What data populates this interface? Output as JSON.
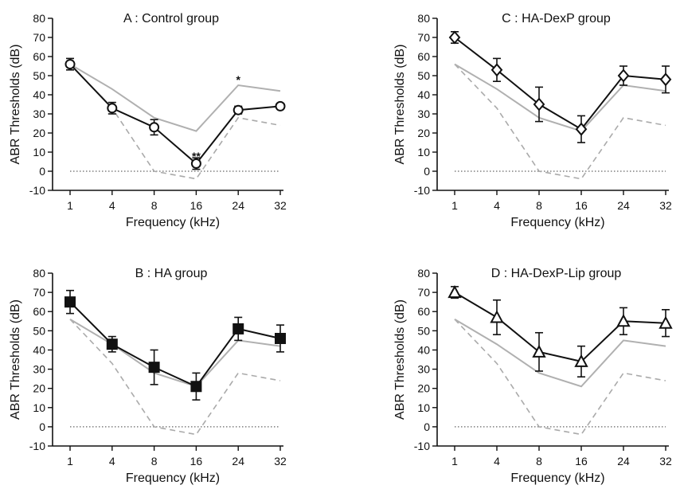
{
  "chart_data": [
    {
      "type": "line",
      "title": "A : Control group",
      "xlabel": "Frequency (kHz)",
      "ylabel": "ABR Thresholds (dB)",
      "categories": [
        "1",
        "4",
        "8",
        "16",
        "24",
        "32"
      ],
      "ylim": [
        -10,
        80
      ],
      "yticks": [
        -10,
        0,
        10,
        20,
        30,
        40,
        50,
        60,
        70,
        80
      ],
      "marker": "circle-open",
      "series": [
        {
          "values": [
            56,
            33,
            23,
            4,
            32,
            34
          ],
          "errors": [
            3,
            3,
            4,
            3,
            2,
            1
          ]
        },
        {
          "values": [
            56,
            43,
            28,
            21,
            45,
            42
          ]
        },
        {
          "values": [
            56,
            33,
            0,
            -4,
            28,
            24
          ]
        },
        {
          "values": [
            0,
            0,
            0,
            0,
            0,
            0
          ]
        }
      ],
      "annotations": [
        {
          "text": "**",
          "x": "16",
          "y": 8
        },
        {
          "text": "*",
          "x": "24",
          "y": 48
        }
      ]
    },
    {
      "type": "line",
      "title": "B : HA group",
      "xlabel": "Frequency (kHz)",
      "ylabel": "ABR Thresholds (dB)",
      "categories": [
        "1",
        "4",
        "8",
        "16",
        "24",
        "32"
      ],
      "ylim": [
        -10,
        80
      ],
      "yticks": [
        -10,
        0,
        10,
        20,
        30,
        40,
        50,
        60,
        70,
        80
      ],
      "marker": "square-filled",
      "series": [
        {
          "values": [
            65,
            43,
            31,
            21,
            51,
            46
          ],
          "errors": [
            6,
            4,
            9,
            7,
            6,
            7
          ]
        },
        {
          "values": [
            56,
            43,
            28,
            21,
            45,
            42
          ]
        },
        {
          "values": [
            56,
            33,
            0,
            -4,
            28,
            24
          ]
        },
        {
          "values": [
            0,
            0,
            0,
            0,
            0,
            0
          ]
        }
      ],
      "annotations": []
    },
    {
      "type": "line",
      "title": "C : HA-DexP group",
      "xlabel": "Frequency (kHz)",
      "ylabel": "ABR Thresholds (dB)",
      "categories": [
        "1",
        "4",
        "8",
        "16",
        "24",
        "32"
      ],
      "ylim": [
        -10,
        80
      ],
      "yticks": [
        -10,
        0,
        10,
        20,
        30,
        40,
        50,
        60,
        70,
        80
      ],
      "marker": "diamond-open",
      "series": [
        {
          "values": [
            70,
            53,
            35,
            22,
            50,
            48
          ],
          "errors": [
            3,
            6,
            9,
            7,
            5,
            7
          ]
        },
        {
          "values": [
            56,
            43,
            28,
            21,
            45,
            42
          ]
        },
        {
          "values": [
            56,
            33,
            0,
            -4,
            28,
            24
          ]
        },
        {
          "values": [
            0,
            0,
            0,
            0,
            0,
            0
          ]
        }
      ],
      "annotations": []
    },
    {
      "type": "line",
      "title": "D : HA-DexP-Lip group",
      "xlabel": "Frequency (kHz)",
      "ylabel": "ABR Thresholds (dB)",
      "categories": [
        "1",
        "4",
        "8",
        "16",
        "24",
        "32"
      ],
      "ylim": [
        -10,
        80
      ],
      "yticks": [
        -10,
        0,
        10,
        20,
        30,
        40,
        50,
        60,
        70,
        80
      ],
      "marker": "triangle-open",
      "series": [
        {
          "values": [
            70,
            57,
            39,
            34,
            55,
            54
          ],
          "errors": [
            3,
            9,
            10,
            8,
            7,
            7
          ]
        },
        {
          "values": [
            56,
            43,
            28,
            21,
            45,
            42
          ]
        },
        {
          "values": [
            56,
            33,
            0,
            -4,
            28,
            24
          ]
        },
        {
          "values": [
            0,
            0,
            0,
            0,
            0,
            0
          ]
        }
      ],
      "annotations": []
    }
  ],
  "styles": {
    "group_line_color": "#111111",
    "reference_solid_color": "#b0b0b0",
    "reference_dashed_color": "#aaaaaa",
    "zero_line_color": "#666666",
    "axis_color": "#111111"
  }
}
